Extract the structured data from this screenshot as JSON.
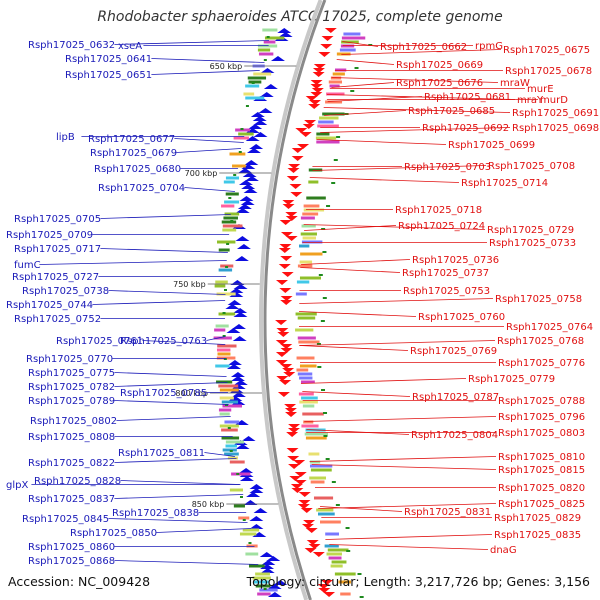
{
  "title": "Rhodobacter sphaeroides ATCC 17025, complete genome",
  "footer": {
    "accession": "Accession: NC_009428",
    "summary": "Topology: circular; Length: 3,217,726 bp; Genes: 3,156"
  },
  "colors": {
    "left_labels": "#1a1ab8",
    "right_labels": "#e01010",
    "backbone": "#8a8a8a",
    "tick": "#1e8a1e"
  },
  "kbp_marks": [
    {
      "label": "650 kbp"
    },
    {
      "label": "700 kbp"
    },
    {
      "label": "750 kbp"
    },
    {
      "label": "800 kbp"
    },
    {
      "label": "850 kbp"
    }
  ],
  "left_labels": [
    "Rsph17025_0632",
    "xseA",
    "Rsph17025_0641",
    "Rsph17025_0651",
    "lipB",
    "Rsph17025_0677",
    "Rsph17025_0679",
    "Rsph17025_0680",
    "Rsph17025_0704",
    "Rsph17025_0705",
    "Rsph17025_0709",
    "Rsph17025_0717",
    "fumC",
    "Rsph17025_0727",
    "Rsph17025_0738",
    "Rsph17025_0744",
    "Rsph17025_0752",
    "Rsph17025_0761",
    "Rsph17025_0763",
    "Rsph17025_0770",
    "Rsph17025_0775",
    "Rsph17025_0782",
    "Rsph17025_0785",
    "Rsph17025_0789",
    "Rsph17025_0802",
    "Rsph17025_0808",
    "Rsph17025_0811",
    "Rsph17025_0822",
    "glpX",
    "Rsph17025_0828",
    "Rsph17025_0837",
    "Rsph17025_0838",
    "Rsph17025_0845",
    "Rsph17025_0850",
    "Rsph17025_0860",
    "Rsph17025_0868"
  ],
  "right_labels": [
    "Rsph17025_0662",
    "rpmG",
    "Rsph17025_0675",
    "Rsph17025_0669",
    "Rsph17025_0678",
    "Rsph17025_0676",
    "mraW",
    "murE",
    "Rsph17025_0681",
    "mraY",
    "murD",
    "Rsph17025_0685",
    "Rsph17025_0691",
    "Rsph17025_0692",
    "Rsph17025_0698",
    "Rsph17025_0699",
    "Rsph17025_0703",
    "Rsph17025_0708",
    "Rsph17025_0714",
    "Rsph17025_0718",
    "Rsph17025_0724",
    "Rsph17025_0729",
    "Rsph17025_0733",
    "Rsph17025_0736",
    "Rsph17025_0737",
    "Rsph17025_0753",
    "Rsph17025_0758",
    "Rsph17025_0760",
    "Rsph17025_0764",
    "Rsph17025_0768",
    "Rsph17025_0769",
    "Rsph17025_0776",
    "Rsph17025_0779",
    "Rsph17025_0787",
    "Rsph17025_0788",
    "Rsph17025_0796",
    "Rsph17025_0804",
    "Rsph17025_0803",
    "Rsph17025_0810",
    "Rsph17025_0815",
    "Rsph17025_0820",
    "Rsph17025_0825",
    "Rsph17025_0831",
    "Rsph17025_0829",
    "Rsph17025_0835",
    "dnaG"
  ]
}
